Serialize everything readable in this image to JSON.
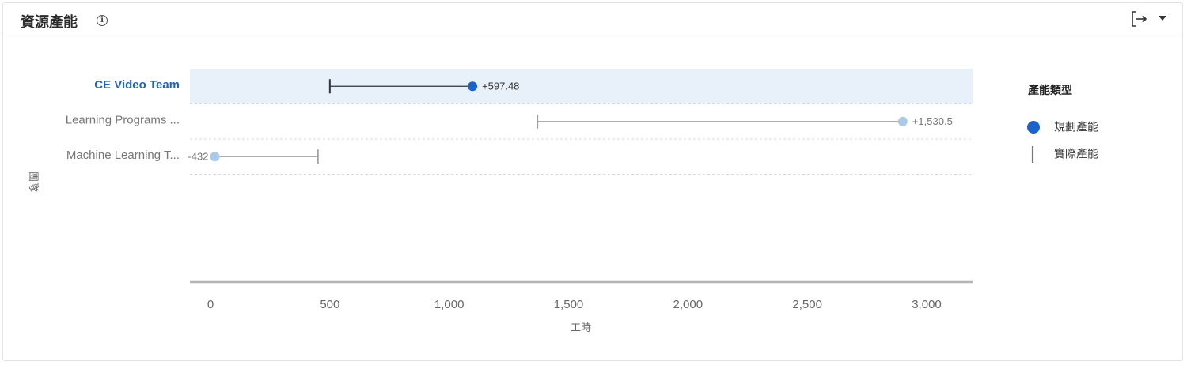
{
  "header": {
    "title": "資源產能",
    "info_icon": "info-icon",
    "export_icon": "export-icon",
    "dropdown_icon": "chevron-down-icon"
  },
  "colors": {
    "planned_active": "#1c63c9",
    "planned": "#a9cbea",
    "actual_active": "#333333",
    "actual": "#a0a0a0",
    "active_row_bg": "#e8f0fa",
    "axis": "#b5b5b5"
  },
  "chart_data": {
    "type": "dumbbell",
    "xlabel": "工時",
    "ylabel": "團隊",
    "xlim": [
      -50,
      3200
    ],
    "xticks": [
      0,
      500,
      1000,
      1500,
      2000,
      2500,
      3000
    ],
    "xtick_labels": [
      "0",
      "500",
      "1,000",
      "1,500",
      "2,000",
      "2,500",
      "3,000"
    ],
    "categories": [
      "CE Video Team",
      "Learning Programs ...",
      "Machine Learning T..."
    ],
    "active_category": 0,
    "series": [
      {
        "name": "規劃產能",
        "values": [
          1097.48,
          2900,
          18
        ]
      },
      {
        "name": "實際產能",
        "values": [
          500,
          1369.5,
          450
        ]
      }
    ],
    "difference_labels": [
      "+597.48",
      "+1,530.5",
      "-432"
    ],
    "legend": {
      "title": "產能類型",
      "position": "right",
      "items": [
        {
          "label": "規劃產能",
          "marker": "circle"
        },
        {
          "label": "實際產能",
          "marker": "line"
        }
      ]
    },
    "grid": false
  }
}
